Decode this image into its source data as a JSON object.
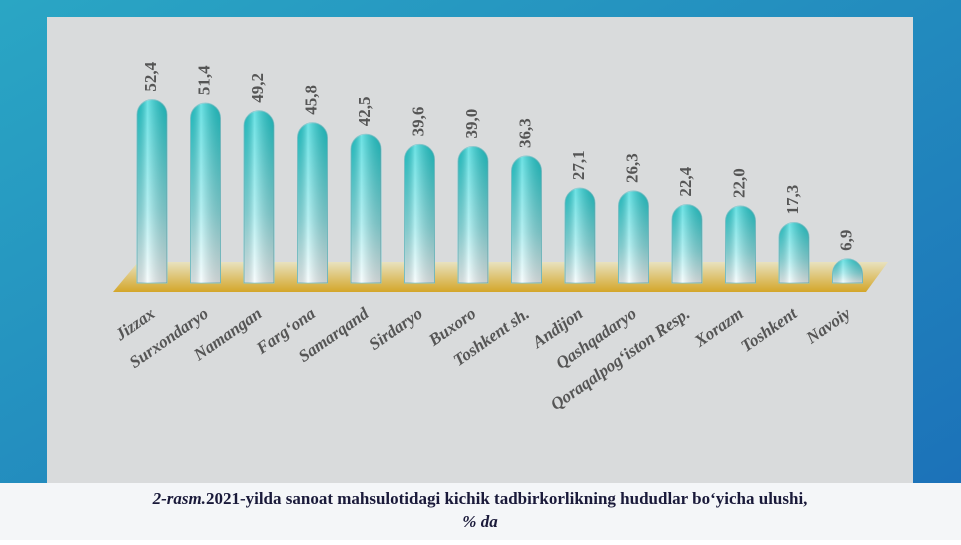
{
  "chart_data": {
    "type": "bar",
    "categories": [
      "Jizzax",
      "Surxondaryo",
      "Namangan",
      "Farg‘ona",
      "Samarqand",
      "Sirdaryo",
      "Buxoro",
      "Toshkent sh.",
      "Andijon",
      "Qashqadaryo",
      "Qoraqalpog‘iston Resp.",
      "Xorazm",
      "Toshkent",
      "Navoiy"
    ],
    "values": [
      52.4,
      51.4,
      49.2,
      45.8,
      42.5,
      39.6,
      39.0,
      36.3,
      27.1,
      26.3,
      22.4,
      22.0,
      17.3,
      6.9
    ],
    "value_labels": [
      "52,4",
      "51,4",
      "49,2",
      "45,8",
      "42,5",
      "39,6",
      "39,0",
      "36,3",
      "27,1",
      "26,3",
      "22,4",
      "22,0",
      "17,3",
      "6,9"
    ],
    "color": "#1fd3d6",
    "caption_prefix": "2-rasm.",
    "caption": "2021-yilda sanoat mahsulotidagi kichik tadbirkorlikning hududlar bo‘yicha ulushi,",
    "caption_unit": "% da"
  }
}
